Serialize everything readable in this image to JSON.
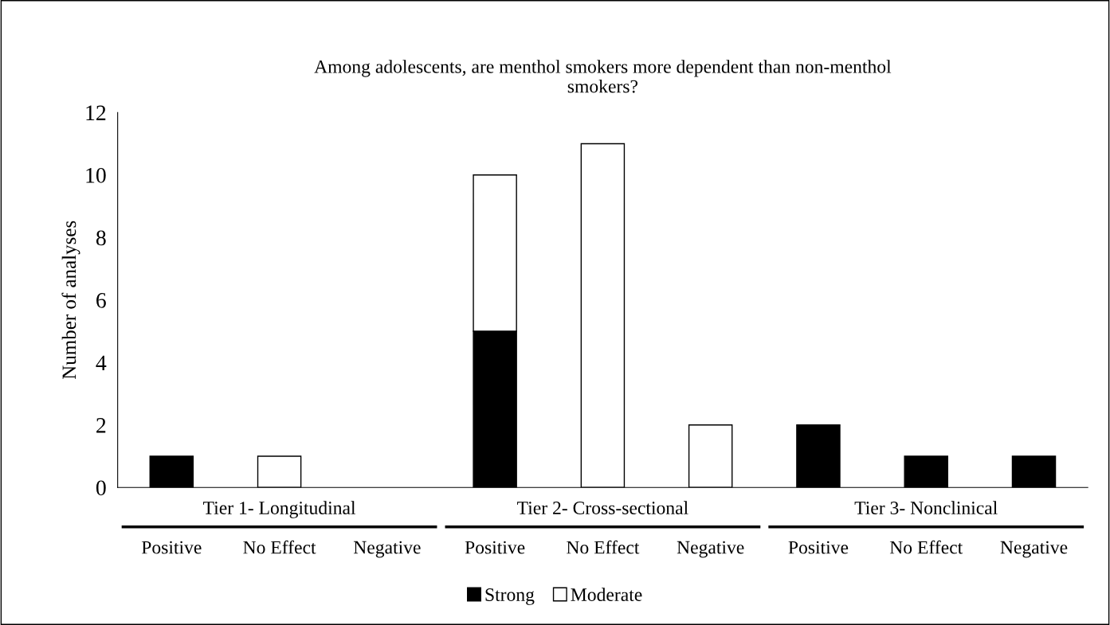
{
  "chart_data": {
    "type": "bar",
    "stacked": true,
    "title": "Among adolescents, are menthol smokers more dependent than non-menthol\nsmokers?",
    "ylabel": "Number of analyses",
    "categories": [
      "Positive",
      "No Effect",
      "Negative",
      "Positive",
      "No Effect",
      "Negative",
      "Positive",
      "No Effect",
      "Negative"
    ],
    "series": [
      {
        "name": "Strong",
        "color": "#000000",
        "values": [
          1,
          0,
          0,
          5,
          0,
          0,
          2,
          1,
          1
        ]
      },
      {
        "name": "Moderate",
        "color": "#ffffff",
        "values": [
          0,
          1,
          0,
          5,
          11,
          2,
          0,
          0,
          0
        ]
      }
    ],
    "annotations": [
      "Tier 1- Longitudinal",
      "Tier 2- Cross-sectional",
      "Tier 3- Nonclinical"
    ],
    "ylim": [
      0,
      12
    ],
    "yticks": [
      0,
      2,
      4,
      6,
      8,
      10,
      12
    ],
    "grid": false,
    "legend": "bottom"
  }
}
